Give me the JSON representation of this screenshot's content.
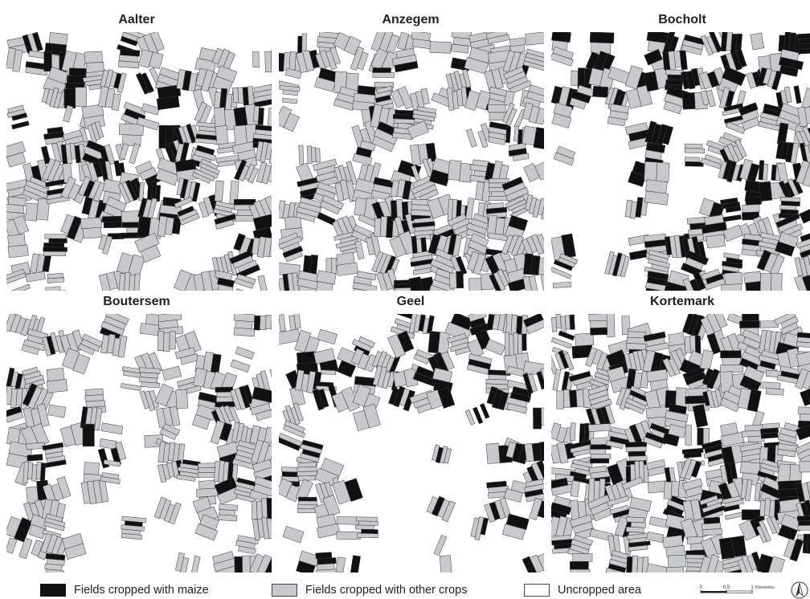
{
  "panels": [
    {
      "name": "Aalter",
      "seed": 11,
      "maize": 0.3,
      "cover": 0.82,
      "clearings": [
        [
          0.06,
          0.22,
          0.08
        ],
        [
          0.62,
          0.08,
          0.08
        ],
        [
          0.74,
          0.18,
          0.07
        ],
        [
          0.55,
          0.42,
          0.05
        ],
        [
          0.72,
          0.8,
          0.12
        ],
        [
          0.28,
          0.9,
          0.1
        ],
        [
          0.6,
          0.95,
          0.1
        ],
        [
          0.48,
          0.25,
          0.06
        ]
      ]
    },
    {
      "name": "Anzegem",
      "seed": 23,
      "maize": 0.12,
      "cover": 0.83,
      "clearings": [
        [
          0.14,
          0.38,
          0.14
        ],
        [
          0.68,
          0.38,
          0.1
        ],
        [
          0.5,
          0.2,
          0.06
        ],
        [
          0.36,
          0.84,
          0.08
        ],
        [
          0.9,
          0.55,
          0.05
        ],
        [
          0.04,
          0.05,
          0.05
        ]
      ]
    },
    {
      "name": "Bocholt",
      "seed": 37,
      "maize": 0.4,
      "cover": 0.72,
      "clearings": [
        [
          0.08,
          0.6,
          0.22
        ],
        [
          0.18,
          0.85,
          0.14
        ],
        [
          0.5,
          0.55,
          0.1
        ],
        [
          0.42,
          0.38,
          0.08
        ],
        [
          0.15,
          0.35,
          0.1
        ]
      ]
    },
    {
      "name": "Boutersem",
      "seed": 51,
      "maize": 0.12,
      "cover": 0.62,
      "clearings": [
        [
          0.5,
          0.8,
          0.2
        ],
        [
          0.2,
          0.58,
          0.1
        ],
        [
          0.72,
          0.45,
          0.1
        ],
        [
          0.1,
          0.18,
          0.06
        ],
        [
          0.85,
          0.12,
          0.08
        ],
        [
          0.4,
          0.35,
          0.08
        ]
      ]
    },
    {
      "name": "Geel",
      "seed": 67,
      "maize": 0.28,
      "cover": 0.55,
      "clearings": [
        [
          0.55,
          0.62,
          0.26
        ],
        [
          0.4,
          0.95,
          0.14
        ],
        [
          0.8,
          0.88,
          0.1
        ],
        [
          0.25,
          0.25,
          0.06
        ],
        [
          0.62,
          0.02,
          0.06
        ]
      ]
    },
    {
      "name": "Kortemark",
      "seed": 79,
      "maize": 0.22,
      "cover": 0.88,
      "clearings": [
        [
          0.86,
          0.38,
          0.09
        ],
        [
          0.62,
          0.44,
          0.06
        ],
        [
          0.2,
          0.1,
          0.04
        ]
      ]
    }
  ],
  "colors": {
    "maize": "#111111",
    "other_crops": "#c8c9cc",
    "uncropped": "#ffffff",
    "outline": "#3a3a3a"
  },
  "legend": {
    "maize_label": "Fields cropped with maize",
    "other_label": "Fields cropped with other crops",
    "uncropped_label": "Uncropped area"
  },
  "scalebar": {
    "tick_0": "0",
    "tick_mid": "0.5",
    "tick_end": "1",
    "unit": "Kilometers"
  },
  "north_arrow": {
    "icon": "north-arrow-icon"
  }
}
